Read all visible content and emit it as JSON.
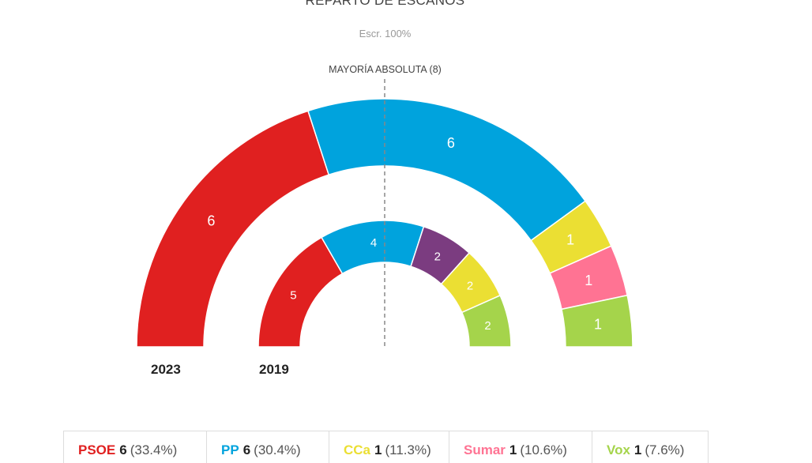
{
  "chart_data": {
    "type": "parliament",
    "title": "REPARTO DE ESCAÑOS",
    "subtitle": "Escr. 100%",
    "majority_label": "MAYORÍA ABSOLUTA (8)",
    "majority": 8,
    "rings": [
      {
        "label": "2023",
        "segments": [
          {
            "party": "PSOE",
            "seats": 6,
            "color": "#e02020"
          },
          {
            "party": "PP",
            "seats": 6,
            "color": "#00a3dd"
          },
          {
            "party": "CCa",
            "seats": 1,
            "color": "#ebdf33"
          },
          {
            "party": "Sumar",
            "seats": 1,
            "color": "#ff7393"
          },
          {
            "party": "Vox",
            "seats": 1,
            "color": "#a5d44b"
          }
        ]
      },
      {
        "label": "2019",
        "segments": [
          {
            "seats": 5,
            "color": "#e02020"
          },
          {
            "seats": 4,
            "color": "#00a3dd"
          },
          {
            "seats": 2,
            "color": "#7b3c80"
          },
          {
            "seats": 2,
            "color": "#ebdf33"
          },
          {
            "seats": 2,
            "color": "#a5d44b"
          }
        ]
      }
    ],
    "legend": [
      {
        "party": "PSOE",
        "seats": "6",
        "pct": "(33.4%)",
        "color": "#e02020"
      },
      {
        "party": "PP",
        "seats": "6",
        "pct": "(30.4%)",
        "color": "#00a3dd"
      },
      {
        "party": "CCa",
        "seats": "1",
        "pct": "(11.3%)",
        "color": "#ebdf33"
      },
      {
        "party": "Sumar",
        "seats": "1",
        "pct": "(10.6%)",
        "color": "#ff7393"
      },
      {
        "party": "Vox",
        "seats": "1",
        "pct": "(7.6%)",
        "color": "#a5d44b"
      }
    ]
  }
}
